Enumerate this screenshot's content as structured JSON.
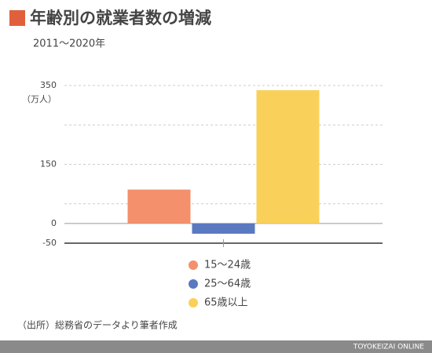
{
  "chart_data": {
    "type": "bar",
    "title": "年齢別の就業者数の増減",
    "subtitle": "2011～2020年",
    "y_unit": "（万人）",
    "source": "（出所）総務省のデータより筆者作成",
    "footer": "TOYOKEIZAI ONLINE",
    "categories": [
      null
    ],
    "series": [
      {
        "name": "15～24歳",
        "color": "#f4906c",
        "values": [
          86
        ]
      },
      {
        "name": "25～64歳",
        "color": "#5b79c0",
        "values": [
          -26
        ]
      },
      {
        "name": "65歳以上",
        "color": "#f9d05a",
        "values": [
          338
        ]
      }
    ],
    "ylim": [
      -50,
      350
    ],
    "yticks": [
      350,
      150,
      0,
      -50
    ],
    "minor_yticks": [
      50,
      250
    ],
    "grid": true,
    "legend": "bottom"
  }
}
